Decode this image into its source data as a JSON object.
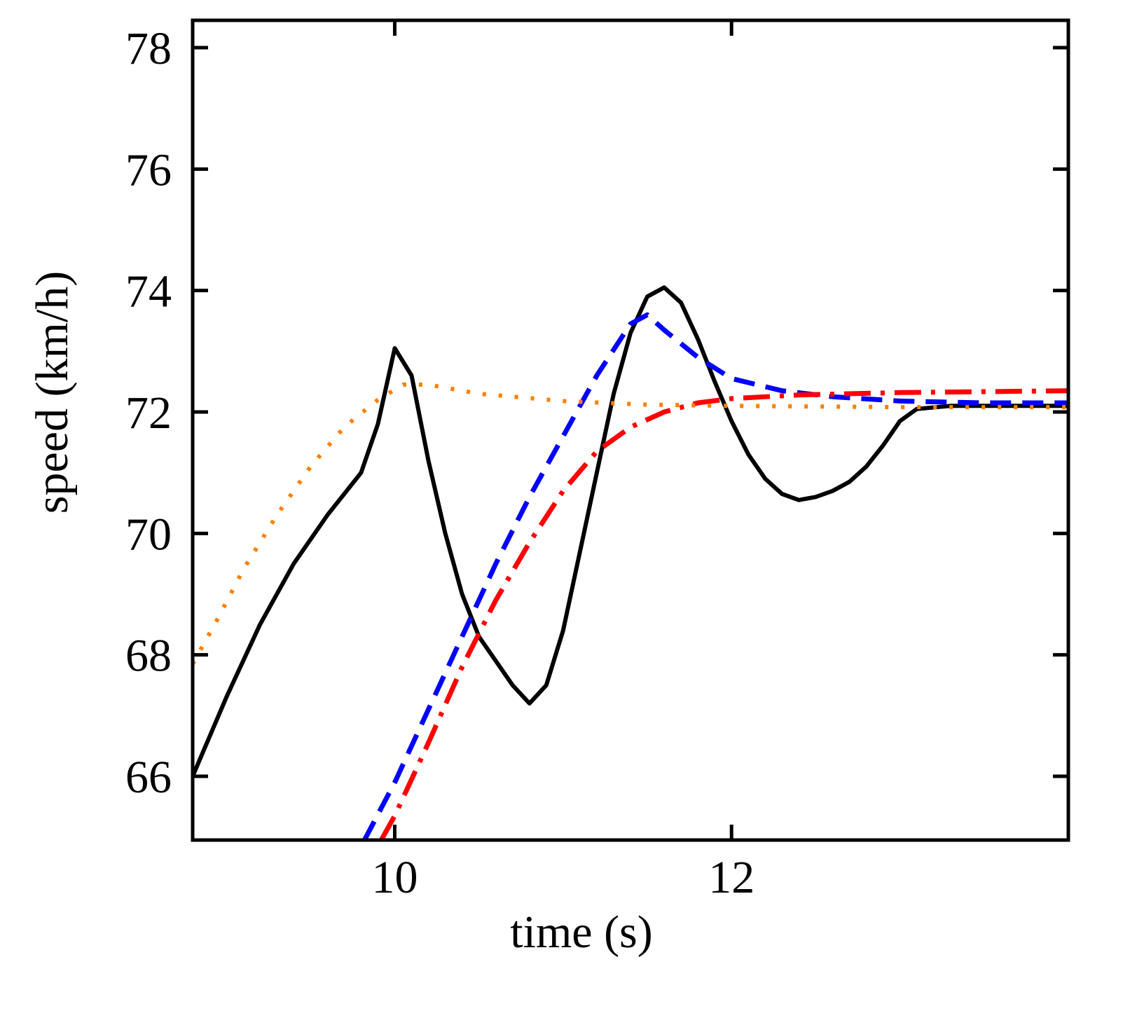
{
  "chart_data": {
    "type": "line",
    "title": "",
    "xlabel": "time (s)",
    "ylabel": "speed (km/h)",
    "xlim": [
      8.8,
      14.0
    ],
    "ylim": [
      64.95,
      78.45
    ],
    "xticks": [
      10,
      12
    ],
    "yticks": [
      66,
      68,
      70,
      72,
      74,
      76,
      78
    ],
    "xtick_labels": [
      "10",
      "12"
    ],
    "ytick_labels": [
      "66",
      "68",
      "70",
      "72",
      "74",
      "76",
      "78"
    ],
    "grid": false,
    "legend": null,
    "series": [
      {
        "name": "solid",
        "color": "#000000",
        "style": "solid",
        "points": [
          [
            8.8,
            66.0
          ],
          [
            9.0,
            67.3
          ],
          [
            9.2,
            68.5
          ],
          [
            9.4,
            69.5
          ],
          [
            9.6,
            70.3
          ],
          [
            9.8,
            71.0
          ],
          [
            9.9,
            71.8
          ],
          [
            10.0,
            73.05
          ],
          [
            10.1,
            72.6
          ],
          [
            10.2,
            71.2
          ],
          [
            10.3,
            70.0
          ],
          [
            10.4,
            69.0
          ],
          [
            10.5,
            68.3
          ],
          [
            10.6,
            67.9
          ],
          [
            10.7,
            67.5
          ],
          [
            10.8,
            67.2
          ],
          [
            10.9,
            67.5
          ],
          [
            11.0,
            68.4
          ],
          [
            11.1,
            69.7
          ],
          [
            11.2,
            71.0
          ],
          [
            11.3,
            72.3
          ],
          [
            11.4,
            73.3
          ],
          [
            11.5,
            73.9
          ],
          [
            11.6,
            74.05
          ],
          [
            11.7,
            73.8
          ],
          [
            11.8,
            73.2
          ],
          [
            11.9,
            72.5
          ],
          [
            12.0,
            71.85
          ],
          [
            12.1,
            71.3
          ],
          [
            12.2,
            70.9
          ],
          [
            12.3,
            70.65
          ],
          [
            12.4,
            70.55
          ],
          [
            12.5,
            70.6
          ],
          [
            12.6,
            70.7
          ],
          [
            12.7,
            70.85
          ],
          [
            12.8,
            71.1
          ],
          [
            12.9,
            71.45
          ],
          [
            13.0,
            71.85
          ],
          [
            13.1,
            72.05
          ],
          [
            13.3,
            72.1
          ],
          [
            14.0,
            72.1
          ]
        ]
      },
      {
        "name": "dashed",
        "color": "#0000ff",
        "style": "dashed",
        "points": [
          [
            9.82,
            64.95
          ],
          [
            10.0,
            65.9
          ],
          [
            10.2,
            67.1
          ],
          [
            10.4,
            68.3
          ],
          [
            10.6,
            69.5
          ],
          [
            10.8,
            70.6
          ],
          [
            11.0,
            71.6
          ],
          [
            11.2,
            72.6
          ],
          [
            11.4,
            73.45
          ],
          [
            11.5,
            73.6
          ],
          [
            11.6,
            73.35
          ],
          [
            11.8,
            72.9
          ],
          [
            12.0,
            72.55
          ],
          [
            12.3,
            72.35
          ],
          [
            12.6,
            72.25
          ],
          [
            13.0,
            72.18
          ],
          [
            13.5,
            72.15
          ],
          [
            14.0,
            72.15
          ]
        ]
      },
      {
        "name": "dash-dot",
        "color": "#ff0000",
        "style": "dashdot",
        "points": [
          [
            9.92,
            64.95
          ],
          [
            10.0,
            65.35
          ],
          [
            10.2,
            66.55
          ],
          [
            10.4,
            67.8
          ],
          [
            10.6,
            68.9
          ],
          [
            10.8,
            69.85
          ],
          [
            11.0,
            70.7
          ],
          [
            11.2,
            71.35
          ],
          [
            11.4,
            71.75
          ],
          [
            11.6,
            72.0
          ],
          [
            11.8,
            72.15
          ],
          [
            12.0,
            72.22
          ],
          [
            12.4,
            72.28
          ],
          [
            13.0,
            72.32
          ],
          [
            14.0,
            72.35
          ]
        ]
      },
      {
        "name": "dotted",
        "color": "#ff7f00",
        "style": "dotted",
        "points": [
          [
            8.8,
            67.85
          ],
          [
            8.95,
            68.6
          ],
          [
            9.1,
            69.4
          ],
          [
            9.3,
            70.3
          ],
          [
            9.5,
            71.1
          ],
          [
            9.7,
            71.75
          ],
          [
            9.9,
            72.2
          ],
          [
            10.05,
            72.45
          ],
          [
            10.2,
            72.45
          ],
          [
            10.5,
            72.3
          ],
          [
            11.0,
            72.18
          ],
          [
            11.5,
            72.12
          ],
          [
            12.0,
            72.1
          ],
          [
            13.0,
            72.08
          ],
          [
            14.0,
            72.08
          ]
        ]
      }
    ]
  }
}
